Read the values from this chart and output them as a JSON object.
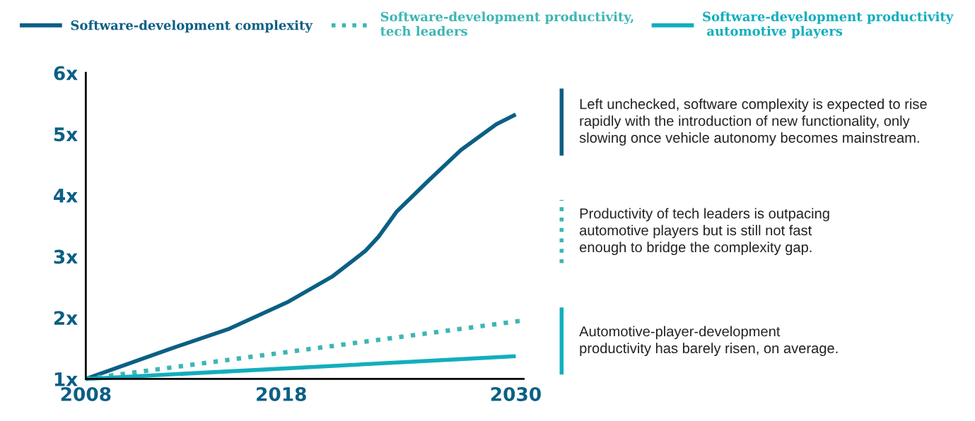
{
  "chart_data": {
    "type": "line",
    "x": [
      2008,
      2012.4,
      2015.35,
      2018.3,
      2020.6,
      2022.3,
      2023.0,
      2023.9,
      2025.6,
      2027.2,
      2029.0,
      2030
    ],
    "series": [
      {
        "name": "Software-development complexity",
        "color": "#0b5f84",
        "line_style": "solid",
        "values": [
          1.0,
          1.5,
          1.82,
          2.25,
          2.67,
          3.09,
          3.33,
          3.73,
          4.26,
          4.74,
          5.16,
          5.32
        ]
      },
      {
        "name": "Software-development productivity,\ntech leaders",
        "color": "#3db6b4",
        "line_style": "dotted",
        "x": [
          2008,
          2030.3
        ],
        "values": [
          1.0,
          1.95
        ]
      },
      {
        "name": "Software-development productivity\n automotive players",
        "color": "#12aebd",
        "line_style": "solid",
        "x": [
          2008,
          2030
        ],
        "values": [
          1.0,
          1.37
        ]
      }
    ],
    "xlim": [
      2008,
      2030.4
    ],
    "xticks": [
      2008,
      2018,
      2030
    ],
    "ylim": [
      1,
      6
    ],
    "yticks": [
      {
        "value": 1,
        "label": "1x"
      },
      {
        "value": 2,
        "label": "2x"
      },
      {
        "value": 3,
        "label": "3x"
      },
      {
        "value": 4,
        "label": "4x"
      },
      {
        "value": 5,
        "label": "5x"
      },
      {
        "value": 6,
        "label": "6x"
      }
    ],
    "grid": false,
    "legend": "top",
    "marker": "none",
    "annotations": [
      "Left unchecked, software complexity is expected to rise\nrapidly with the introduction of new functionality, only\nslowing once vehicle autonomy becomes mainstream.",
      "Productivity of tech leaders is outpacing\nautomotive players but is still not fast\nenough to bridge the complexity gap.",
      "Automotive-player-development\nproductivity has barely risen, on average."
    ]
  }
}
